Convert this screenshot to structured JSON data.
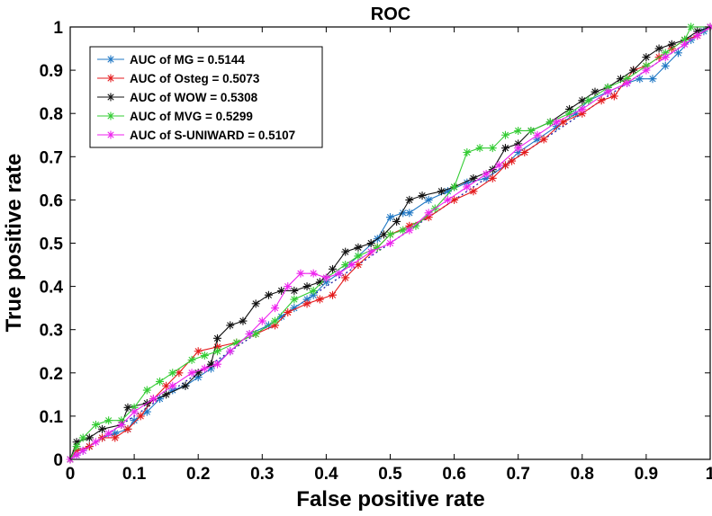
{
  "chart_data": {
    "type": "line",
    "title": "ROC",
    "xlabel": "False positive rate",
    "ylabel": "True positive rate",
    "xlim": [
      0,
      1
    ],
    "ylim": [
      0,
      1
    ],
    "xticks": [
      "0",
      "0.1",
      "0.2",
      "0.3",
      "0.4",
      "0.5",
      "0.6",
      "0.7",
      "0.8",
      "0.9",
      "1"
    ],
    "yticks": [
      "0",
      "0.1",
      "0.2",
      "0.3",
      "0.4",
      "0.5",
      "0.6",
      "0.7",
      "0.8",
      "0.9",
      "1"
    ],
    "grid": false,
    "legend_position": "top-left",
    "reference_line": {
      "style": "dotted",
      "color": "#1a1aa0",
      "x": [
        0,
        1
      ],
      "y": [
        0,
        1
      ]
    },
    "series": [
      {
        "name": "AUC of MG = 0.5144",
        "color": "#1f77c4",
        "points": [
          [
            0,
            0
          ],
          [
            0.01,
            0.01
          ],
          [
            0.02,
            0.02
          ],
          [
            0.03,
            0.03
          ],
          [
            0.05,
            0.05
          ],
          [
            0.07,
            0.06
          ],
          [
            0.09,
            0.07
          ],
          [
            0.1,
            0.09
          ],
          [
            0.12,
            0.11
          ],
          [
            0.14,
            0.14
          ],
          [
            0.16,
            0.16
          ],
          [
            0.18,
            0.17
          ],
          [
            0.2,
            0.19
          ],
          [
            0.22,
            0.21
          ],
          [
            0.25,
            0.25
          ],
          [
            0.28,
            0.29
          ],
          [
            0.31,
            0.31
          ],
          [
            0.33,
            0.33
          ],
          [
            0.35,
            0.35
          ],
          [
            0.37,
            0.37
          ],
          [
            0.38,
            0.38
          ],
          [
            0.4,
            0.41
          ],
          [
            0.42,
            0.43
          ],
          [
            0.45,
            0.47
          ],
          [
            0.48,
            0.51
          ],
          [
            0.5,
            0.56
          ],
          [
            0.52,
            0.57
          ],
          [
            0.53,
            0.57
          ],
          [
            0.56,
            0.6
          ],
          [
            0.59,
            0.62
          ],
          [
            0.62,
            0.64
          ],
          [
            0.65,
            0.65
          ],
          [
            0.68,
            0.68
          ],
          [
            0.7,
            0.71
          ],
          [
            0.73,
            0.74
          ],
          [
            0.76,
            0.77
          ],
          [
            0.79,
            0.8
          ],
          [
            0.81,
            0.83
          ],
          [
            0.84,
            0.85
          ],
          [
            0.87,
            0.87
          ],
          [
            0.89,
            0.88
          ],
          [
            0.91,
            0.88
          ],
          [
            0.93,
            0.91
          ],
          [
            0.95,
            0.94
          ],
          [
            0.97,
            0.97
          ],
          [
            0.99,
            0.99
          ],
          [
            1,
            1
          ]
        ]
      },
      {
        "name": "AUC of Osteg = 0.5073",
        "color": "#e41a1c",
        "points": [
          [
            0,
            0
          ],
          [
            0.01,
            0.02
          ],
          [
            0.03,
            0.03
          ],
          [
            0.05,
            0.05
          ],
          [
            0.07,
            0.05
          ],
          [
            0.09,
            0.07
          ],
          [
            0.11,
            0.1
          ],
          [
            0.13,
            0.14
          ],
          [
            0.15,
            0.17
          ],
          [
            0.17,
            0.2
          ],
          [
            0.2,
            0.25
          ],
          [
            0.23,
            0.26
          ],
          [
            0.26,
            0.27
          ],
          [
            0.29,
            0.29
          ],
          [
            0.32,
            0.31
          ],
          [
            0.34,
            0.34
          ],
          [
            0.37,
            0.36
          ],
          [
            0.39,
            0.37
          ],
          [
            0.41,
            0.38
          ],
          [
            0.43,
            0.42
          ],
          [
            0.45,
            0.45
          ],
          [
            0.48,
            0.49
          ],
          [
            0.5,
            0.52
          ],
          [
            0.53,
            0.54
          ],
          [
            0.56,
            0.56
          ],
          [
            0.6,
            0.6
          ],
          [
            0.63,
            0.62
          ],
          [
            0.66,
            0.65
          ],
          [
            0.68,
            0.68
          ],
          [
            0.69,
            0.69
          ],
          [
            0.71,
            0.71
          ],
          [
            0.74,
            0.74
          ],
          [
            0.77,
            0.78
          ],
          [
            0.8,
            0.8
          ],
          [
            0.83,
            0.83
          ],
          [
            0.85,
            0.84
          ],
          [
            0.87,
            0.88
          ],
          [
            0.88,
            0.9
          ],
          [
            0.9,
            0.91
          ],
          [
            0.92,
            0.93
          ],
          [
            0.94,
            0.95
          ],
          [
            0.96,
            0.97
          ],
          [
            0.98,
            0.98
          ],
          [
            1,
            1
          ]
        ]
      },
      {
        "name": "AUC of WOW = 0.5308",
        "color": "#111111",
        "points": [
          [
            0,
            0
          ],
          [
            0.01,
            0.04
          ],
          [
            0.03,
            0.05
          ],
          [
            0.05,
            0.07
          ],
          [
            0.08,
            0.08
          ],
          [
            0.09,
            0.12
          ],
          [
            0.12,
            0.13
          ],
          [
            0.15,
            0.15
          ],
          [
            0.18,
            0.17
          ],
          [
            0.2,
            0.2
          ],
          [
            0.22,
            0.22
          ],
          [
            0.23,
            0.28
          ],
          [
            0.25,
            0.31
          ],
          [
            0.27,
            0.32
          ],
          [
            0.29,
            0.36
          ],
          [
            0.31,
            0.38
          ],
          [
            0.33,
            0.39
          ],
          [
            0.35,
            0.39
          ],
          [
            0.37,
            0.4
          ],
          [
            0.39,
            0.41
          ],
          [
            0.41,
            0.44
          ],
          [
            0.43,
            0.48
          ],
          [
            0.45,
            0.49
          ],
          [
            0.47,
            0.5
          ],
          [
            0.49,
            0.52
          ],
          [
            0.51,
            0.55
          ],
          [
            0.53,
            0.6
          ],
          [
            0.55,
            0.61
          ],
          [
            0.58,
            0.62
          ],
          [
            0.6,
            0.63
          ],
          [
            0.63,
            0.65
          ],
          [
            0.66,
            0.67
          ],
          [
            0.68,
            0.72
          ],
          [
            0.7,
            0.73
          ],
          [
            0.72,
            0.76
          ],
          [
            0.75,
            0.78
          ],
          [
            0.78,
            0.81
          ],
          [
            0.8,
            0.83
          ],
          [
            0.82,
            0.85
          ],
          [
            0.84,
            0.86
          ],
          [
            0.86,
            0.88
          ],
          [
            0.88,
            0.9
          ],
          [
            0.9,
            0.93
          ],
          [
            0.92,
            0.95
          ],
          [
            0.94,
            0.96
          ],
          [
            0.96,
            0.97
          ],
          [
            0.98,
            0.99
          ],
          [
            1,
            1
          ]
        ]
      },
      {
        "name": "AUC of MVG = 0.5299",
        "color": "#33cc33",
        "points": [
          [
            0,
            0
          ],
          [
            0.01,
            0.03
          ],
          [
            0.02,
            0.05
          ],
          [
            0.04,
            0.08
          ],
          [
            0.06,
            0.09
          ],
          [
            0.08,
            0.09
          ],
          [
            0.1,
            0.12
          ],
          [
            0.12,
            0.16
          ],
          [
            0.14,
            0.18
          ],
          [
            0.16,
            0.2
          ],
          [
            0.19,
            0.23
          ],
          [
            0.21,
            0.24
          ],
          [
            0.23,
            0.25
          ],
          [
            0.26,
            0.27
          ],
          [
            0.29,
            0.29
          ],
          [
            0.32,
            0.32
          ],
          [
            0.35,
            0.37
          ],
          [
            0.38,
            0.39
          ],
          [
            0.4,
            0.42
          ],
          [
            0.43,
            0.45
          ],
          [
            0.45,
            0.47
          ],
          [
            0.48,
            0.49
          ],
          [
            0.5,
            0.52
          ],
          [
            0.52,
            0.53
          ],
          [
            0.54,
            0.54
          ],
          [
            0.57,
            0.58
          ],
          [
            0.6,
            0.63
          ],
          [
            0.62,
            0.71
          ],
          [
            0.64,
            0.72
          ],
          [
            0.66,
            0.72
          ],
          [
            0.68,
            0.75
          ],
          [
            0.7,
            0.76
          ],
          [
            0.72,
            0.76
          ],
          [
            0.75,
            0.78
          ],
          [
            0.78,
            0.8
          ],
          [
            0.81,
            0.83
          ],
          [
            0.84,
            0.86
          ],
          [
            0.87,
            0.88
          ],
          [
            0.9,
            0.91
          ],
          [
            0.93,
            0.94
          ],
          [
            0.96,
            0.97
          ],
          [
            0.97,
            1
          ],
          [
            1,
            1
          ]
        ]
      },
      {
        "name": "AUC of S-UNIWARD = 0.5107",
        "color": "#ee22ee",
        "points": [
          [
            0,
            0
          ],
          [
            0.01,
            0.01
          ],
          [
            0.02,
            0.02
          ],
          [
            0.04,
            0.04
          ],
          [
            0.06,
            0.06
          ],
          [
            0.08,
            0.08
          ],
          [
            0.1,
            0.11
          ],
          [
            0.13,
            0.14
          ],
          [
            0.16,
            0.17
          ],
          [
            0.19,
            0.2
          ],
          [
            0.21,
            0.21
          ],
          [
            0.23,
            0.22
          ],
          [
            0.25,
            0.25
          ],
          [
            0.28,
            0.29
          ],
          [
            0.3,
            0.32
          ],
          [
            0.32,
            0.35
          ],
          [
            0.34,
            0.4
          ],
          [
            0.36,
            0.43
          ],
          [
            0.38,
            0.43
          ],
          [
            0.4,
            0.42
          ],
          [
            0.42,
            0.43
          ],
          [
            0.44,
            0.45
          ],
          [
            0.47,
            0.48
          ],
          [
            0.5,
            0.5
          ],
          [
            0.53,
            0.53
          ],
          [
            0.56,
            0.57
          ],
          [
            0.59,
            0.6
          ],
          [
            0.62,
            0.63
          ],
          [
            0.65,
            0.66
          ],
          [
            0.67,
            0.68
          ],
          [
            0.7,
            0.72
          ],
          [
            0.73,
            0.75
          ],
          [
            0.76,
            0.78
          ],
          [
            0.8,
            0.81
          ],
          [
            0.84,
            0.85
          ],
          [
            0.87,
            0.87
          ],
          [
            0.9,
            0.9
          ],
          [
            0.93,
            0.93
          ],
          [
            0.96,
            0.96
          ],
          [
            0.98,
            0.98
          ],
          [
            1,
            1
          ]
        ]
      }
    ]
  }
}
